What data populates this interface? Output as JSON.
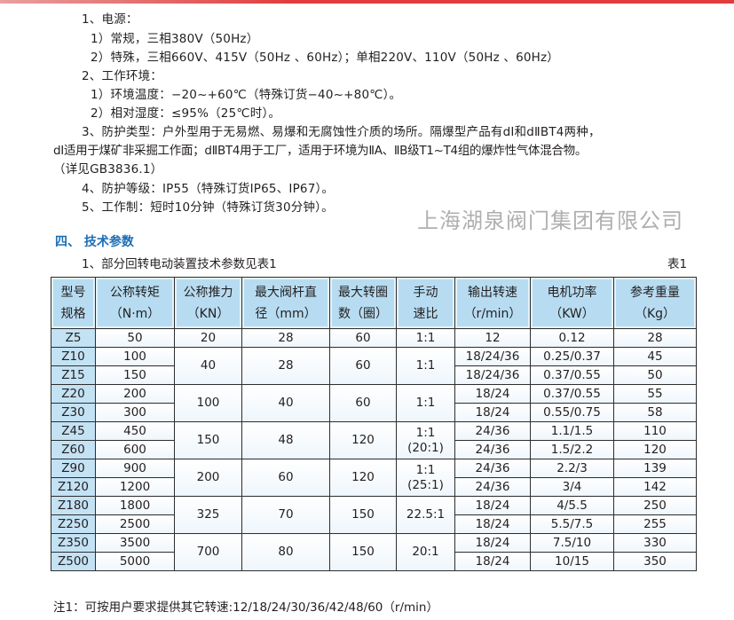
{
  "accent_color": "#1c6eb4",
  "lines": [
    "1、电源：",
    "1）常规，三相380V（50Hz）",
    "2）特殊，三相660V、415V（50Hz 、60Hz）；单相220V、110V（50Hz 、60Hz）",
    "2、工作环境：",
    "1）环境温度：−20~+60℃（特殊订货−40~+80℃）。",
    "2）相对湿度：≤95%（25℃时）。",
    "3、防护类型：户外型用于无易燃、易爆和无腐蚀性介质的场所。隔爆型产品有dⅠ和dⅡBT4两种，",
    "dⅠ适用于煤矿非采掘工作面；dⅡBT4用于工厂，适用于环境为ⅡA、ⅡB级T1~T4组的爆炸性气体混合物。",
    "（详见GB3836.1）",
    "4、防护等级：IP55（特殊订货IP65、IP67）。",
    "5、工作制：短时10分钟（特殊订货30分钟）。"
  ],
  "section": {
    "title": "四、 技术参数",
    "caption": "1、部分回转电动装置技术参数见表1",
    "table_label": "表1"
  },
  "table": {
    "headers": [
      "型号\n规格",
      "公称转矩\n（N·m）",
      "公称推力\n（KN）",
      "最大阀杆直\n径（mm）",
      "最大转圈\n数（圈）",
      "手动\n速比",
      "输出转速\n（r/min）",
      "电机功率\n（KW）",
      "参考重量\n（Kg）"
    ],
    "rows": [
      [
        {
          "t": "Z5"
        },
        {
          "t": "50"
        },
        {
          "t": "20"
        },
        {
          "t": "28"
        },
        {
          "t": "60"
        },
        {
          "t": "1:1"
        },
        {
          "t": "12"
        },
        {
          "t": "0.12"
        },
        {
          "t": "28"
        }
      ],
      [
        {
          "t": "Z10"
        },
        {
          "t": "100"
        },
        {
          "t": "40",
          "rs": 2
        },
        {
          "t": "28",
          "rs": 2
        },
        {
          "t": "60",
          "rs": 2
        },
        {
          "t": "1:1",
          "rs": 2
        },
        {
          "t": "18/24/36"
        },
        {
          "t": "0.25/0.37"
        },
        {
          "t": "45"
        }
      ],
      [
        {
          "t": "Z15"
        },
        {
          "t": "150"
        },
        {
          "t": "18/24/36"
        },
        {
          "t": "0.37/0.55"
        },
        {
          "t": "50"
        }
      ],
      [
        {
          "t": "Z20"
        },
        {
          "t": "200"
        },
        {
          "t": "100",
          "rs": 2
        },
        {
          "t": "40",
          "rs": 2
        },
        {
          "t": "60",
          "rs": 2
        },
        {
          "t": "1:1",
          "rs": 2
        },
        {
          "t": "18/24"
        },
        {
          "t": "0.37/0.55"
        },
        {
          "t": "55"
        }
      ],
      [
        {
          "t": "Z30"
        },
        {
          "t": "300"
        },
        {
          "t": "18/24"
        },
        {
          "t": "0.55/0.75"
        },
        {
          "t": "58"
        }
      ],
      [
        {
          "t": "Z45"
        },
        {
          "t": "450"
        },
        {
          "t": "150",
          "rs": 2
        },
        {
          "t": "48",
          "rs": 2
        },
        {
          "t": "120",
          "rs": 2
        },
        {
          "t": "1:1\n(20:1)",
          "rs": 2
        },
        {
          "t": "24/36"
        },
        {
          "t": "1.1/1.5"
        },
        {
          "t": "110"
        }
      ],
      [
        {
          "t": "Z60"
        },
        {
          "t": "600"
        },
        {
          "t": "24/36"
        },
        {
          "t": "1.5/2.2"
        },
        {
          "t": "120"
        }
      ],
      [
        {
          "t": "Z90"
        },
        {
          "t": "900"
        },
        {
          "t": "200",
          "rs": 2
        },
        {
          "t": "60",
          "rs": 2
        },
        {
          "t": "120",
          "rs": 2
        },
        {
          "t": "1:1\n(25:1)",
          "rs": 2
        },
        {
          "t": "24/36"
        },
        {
          "t": "2.2/3"
        },
        {
          "t": "139"
        }
      ],
      [
        {
          "t": "Z120"
        },
        {
          "t": "1200"
        },
        {
          "t": "24/36"
        },
        {
          "t": "3/4"
        },
        {
          "t": "142"
        }
      ],
      [
        {
          "t": "Z180"
        },
        {
          "t": "1800"
        },
        {
          "t": "325",
          "rs": 2
        },
        {
          "t": "70",
          "rs": 2
        },
        {
          "t": "150",
          "rs": 2
        },
        {
          "t": "22.5:1",
          "rs": 2
        },
        {
          "t": "18/24"
        },
        {
          "t": "4/5.5"
        },
        {
          "t": "250"
        }
      ],
      [
        {
          "t": "Z250"
        },
        {
          "t": "2500"
        },
        {
          "t": "18/24"
        },
        {
          "t": "5.5/7.5"
        },
        {
          "t": "255"
        }
      ],
      [
        {
          "t": "Z350"
        },
        {
          "t": "3500"
        },
        {
          "t": "700",
          "rs": 2
        },
        {
          "t": "80",
          "rs": 2
        },
        {
          "t": "150",
          "rs": 2
        },
        {
          "t": "20:1",
          "rs": 2
        },
        {
          "t": "18/24"
        },
        {
          "t": "7.5/10"
        },
        {
          "t": "330"
        }
      ],
      [
        {
          "t": "Z500"
        },
        {
          "t": "5000"
        },
        {
          "t": "18/24"
        },
        {
          "t": "10/15"
        },
        {
          "t": "350"
        }
      ]
    ]
  },
  "watermark": "上海湖泉阀门集团有限公司",
  "note": "注1：可按用户要求提供其它转速:12/18/24/30/36/42/48/60（r/min）"
}
